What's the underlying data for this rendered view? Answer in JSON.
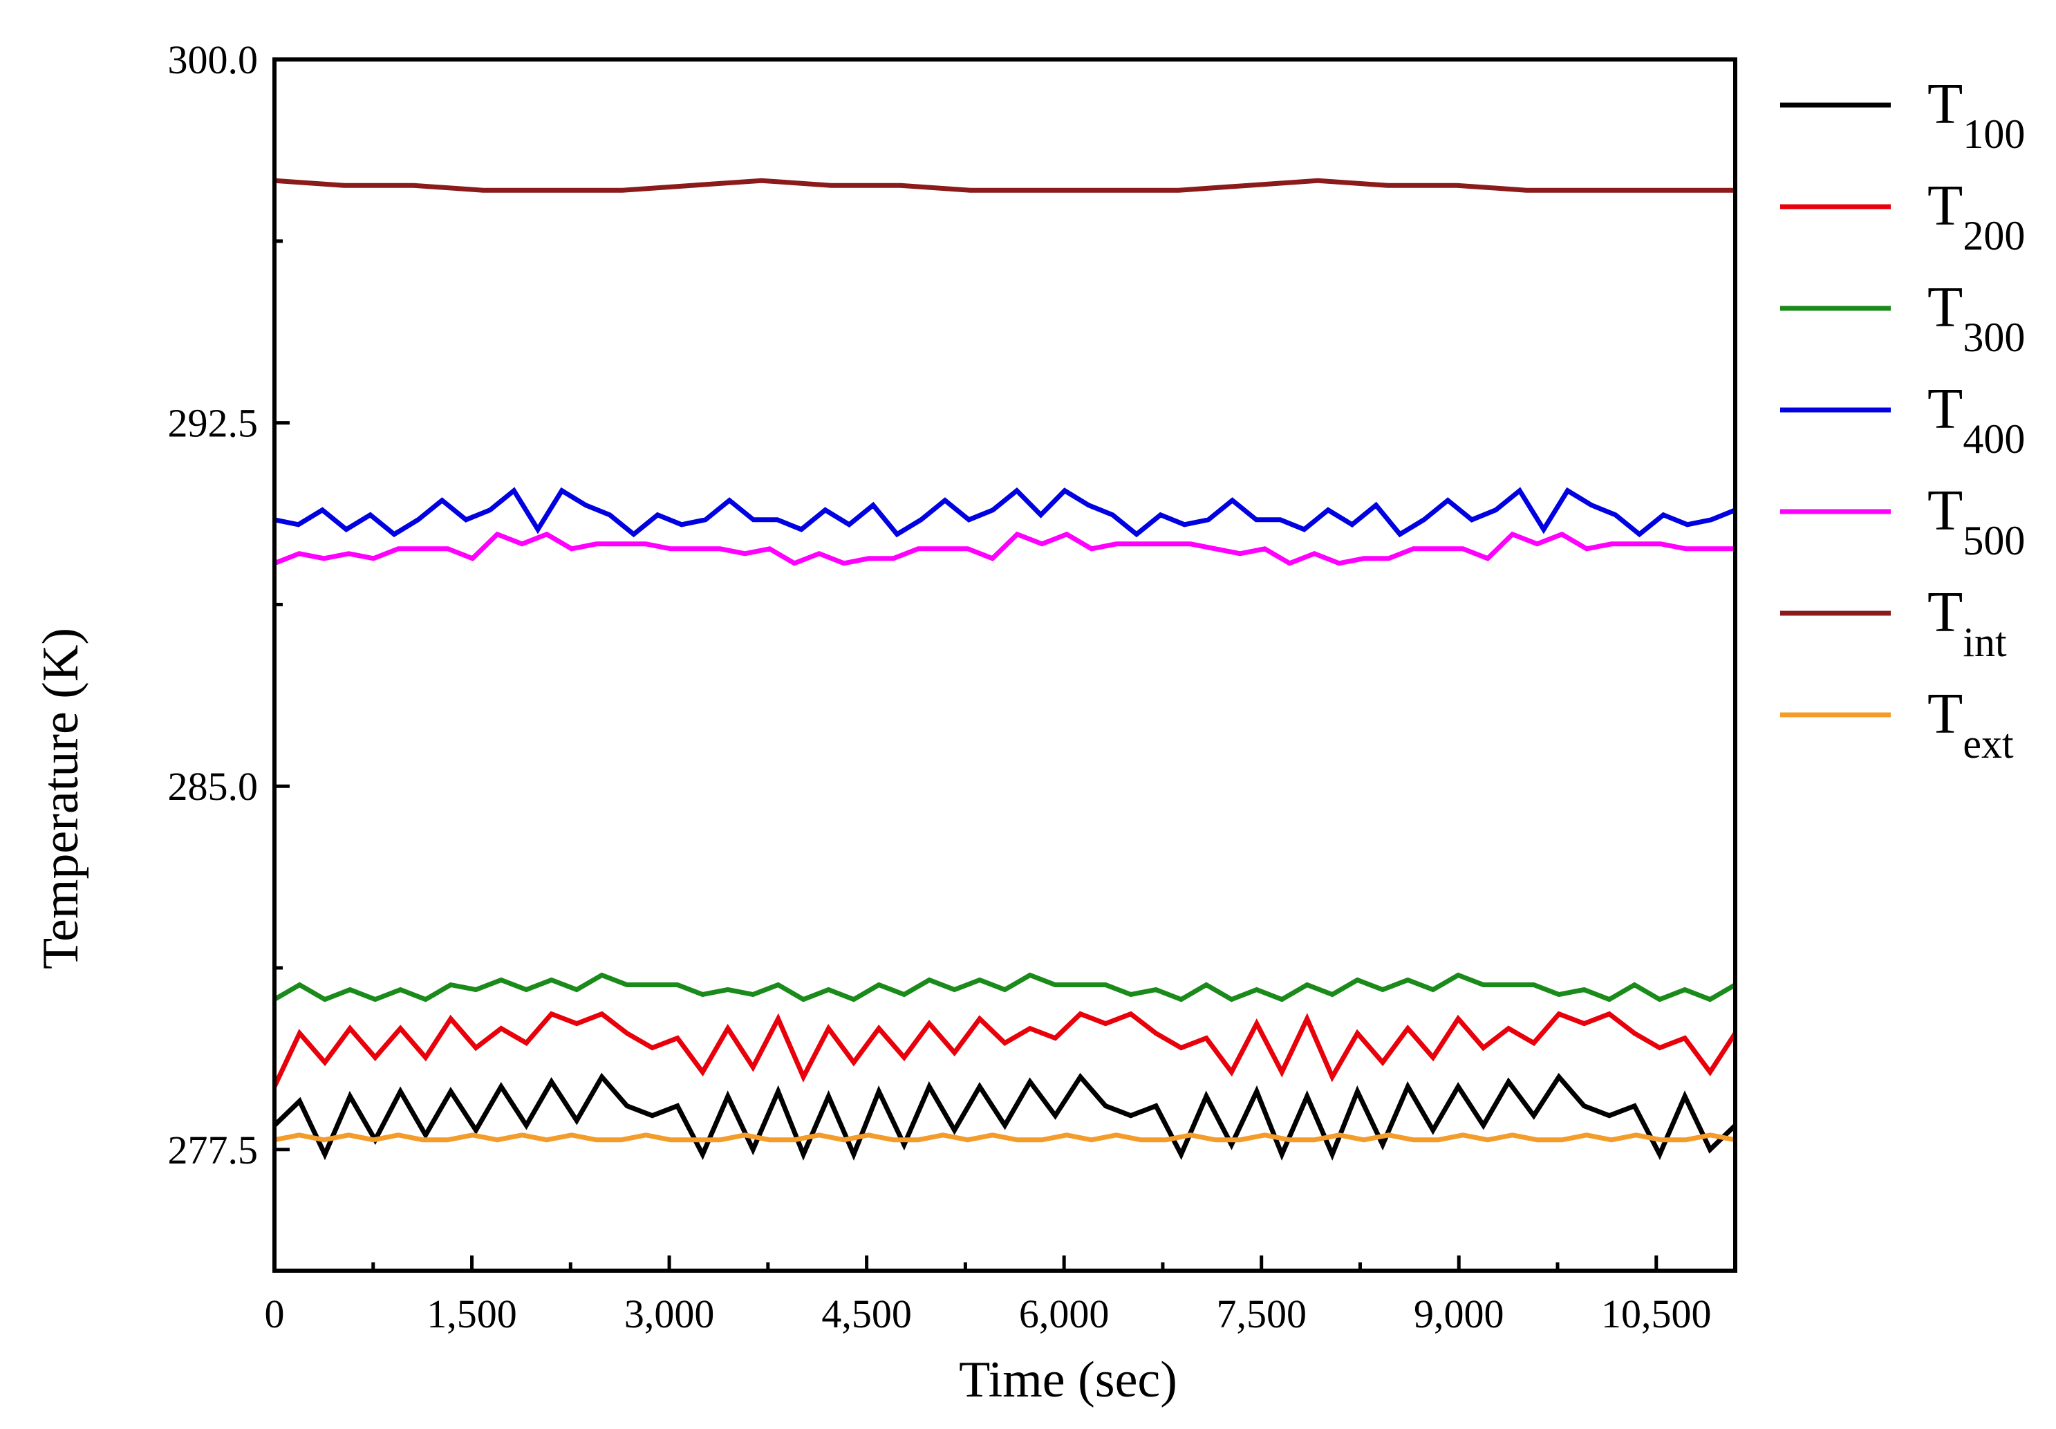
{
  "chart_data": {
    "type": "line",
    "title": "",
    "xlabel": "Time (sec)",
    "ylabel": "Temperature (K)",
    "xlim": [
      0,
      11100
    ],
    "ylim": [
      275.0,
      300.0
    ],
    "x_ticks": [
      0,
      1500,
      3000,
      4500,
      6000,
      7500,
      9000,
      10500
    ],
    "x_tick_labels": [
      "0",
      "1,500",
      "3,000",
      "4,500",
      "6,000",
      "7,500",
      "9,000",
      "10,500"
    ],
    "y_ticks": [
      277.5,
      285.0,
      292.5,
      300.0
    ],
    "y_tick_labels": [
      "277.5",
      "285.0",
      "292.5",
      "300.0"
    ],
    "legend_position": "right",
    "grid": false,
    "series": [
      {
        "name": "T",
        "sub": "100",
        "color": "#000000",
        "values": [
          278.0,
          278.5,
          277.4,
          278.6,
          277.7,
          278.7,
          277.8,
          278.7,
          277.9,
          278.8,
          278.0,
          278.9,
          278.1,
          279.0,
          278.4,
          278.2,
          278.4,
          277.4,
          278.6,
          277.5,
          278.7,
          277.4,
          278.6,
          277.4,
          278.7,
          277.6,
          278.8,
          277.9,
          278.8,
          278.0,
          278.9,
          278.2,
          279.0,
          278.4,
          278.2,
          278.4,
          277.4,
          278.6,
          277.6,
          278.7,
          277.4,
          278.6,
          277.4,
          278.7,
          277.6,
          278.8,
          277.9,
          278.8,
          278.0,
          278.9,
          278.2,
          279.0,
          278.4,
          278.2,
          278.4,
          277.4,
          278.6,
          277.5,
          278.0
        ]
      },
      {
        "name": "T",
        "sub": "200",
        "color": "#e8000b",
        "values": [
          278.8,
          279.9,
          279.3,
          280.0,
          279.4,
          280.0,
          279.4,
          280.2,
          279.6,
          280.0,
          279.7,
          280.3,
          280.1,
          280.3,
          279.9,
          279.6,
          279.8,
          279.1,
          280.0,
          279.2,
          280.2,
          279.0,
          280.0,
          279.3,
          280.0,
          279.4,
          280.1,
          279.5,
          280.2,
          279.7,
          280.0,
          279.8,
          280.3,
          280.1,
          280.3,
          279.9,
          279.6,
          279.8,
          279.1,
          280.1,
          279.1,
          280.2,
          279.0,
          279.9,
          279.3,
          280.0,
          279.4,
          280.2,
          279.6,
          280.0,
          279.7,
          280.3,
          280.1,
          280.3,
          279.9,
          279.6,
          279.8,
          279.1,
          279.9
        ]
      },
      {
        "name": "T",
        "sub": "300",
        "color": "#1a8a1a",
        "values": [
          280.6,
          280.9,
          280.6,
          280.8,
          280.6,
          280.8,
          280.6,
          280.9,
          280.8,
          281.0,
          280.8,
          281.0,
          280.8,
          281.1,
          280.9,
          280.9,
          280.9,
          280.7,
          280.8,
          280.7,
          280.9,
          280.6,
          280.8,
          280.6,
          280.9,
          280.7,
          281.0,
          280.8,
          281.0,
          280.8,
          281.1,
          280.9,
          280.9,
          280.9,
          280.7,
          280.8,
          280.6,
          280.9,
          280.6,
          280.8,
          280.6,
          280.9,
          280.7,
          281.0,
          280.8,
          281.0,
          280.8,
          281.1,
          280.9,
          280.9,
          280.9,
          280.7,
          280.8,
          280.6,
          280.9,
          280.6,
          280.8,
          280.6,
          280.9
        ]
      },
      {
        "name": "T",
        "sub": "400",
        "color": "#0000e0",
        "values": [
          290.5,
          290.4,
          290.7,
          290.3,
          290.6,
          290.2,
          290.5,
          290.9,
          290.5,
          290.7,
          291.1,
          290.3,
          291.1,
          290.8,
          290.6,
          290.2,
          290.6,
          290.4,
          290.5,
          290.9,
          290.5,
          290.5,
          290.3,
          290.7,
          290.4,
          290.8,
          290.2,
          290.5,
          290.9,
          290.5,
          290.7,
          291.1,
          290.6,
          291.1,
          290.8,
          290.6,
          290.2,
          290.6,
          290.4,
          290.5,
          290.9,
          290.5,
          290.5,
          290.3,
          290.7,
          290.4,
          290.8,
          290.2,
          290.5,
          290.9,
          290.5,
          290.7,
          291.1,
          290.3,
          291.1,
          290.8,
          290.6,
          290.2,
          290.6,
          290.4,
          290.5,
          290.7
        ]
      },
      {
        "name": "T",
        "sub": "500",
        "color": "#ff00ff",
        "values": [
          289.6,
          289.8,
          289.7,
          289.8,
          289.7,
          289.9,
          289.9,
          289.9,
          289.7,
          290.2,
          290.0,
          290.2,
          289.9,
          290.0,
          290.0,
          290.0,
          289.9,
          289.9,
          289.9,
          289.8,
          289.9,
          289.6,
          289.8,
          289.6,
          289.7,
          289.7,
          289.9,
          289.9,
          289.9,
          289.7,
          290.2,
          290.0,
          290.2,
          289.9,
          290.0,
          290.0,
          290.0,
          290.0,
          289.9,
          289.8,
          289.9,
          289.6,
          289.8,
          289.6,
          289.7,
          289.7,
          289.9,
          289.9,
          289.9,
          289.7,
          290.2,
          290.0,
          290.2,
          289.9,
          290.0,
          290.0,
          290.0,
          289.9,
          289.9,
          289.9
        ]
      },
      {
        "name": "T",
        "sub": "int",
        "color": "#8b1a1a",
        "values": [
          297.5,
          297.4,
          297.4,
          297.3,
          297.3,
          297.3,
          297.4,
          297.5,
          297.4,
          297.4,
          297.3,
          297.3,
          297.3,
          297.3,
          297.4,
          297.5,
          297.4,
          297.4,
          297.3,
          297.3,
          297.3,
          297.3
        ]
      },
      {
        "name": "T",
        "sub": "ext",
        "color": "#f39c2a",
        "values": [
          277.7,
          277.8,
          277.7,
          277.8,
          277.7,
          277.8,
          277.7,
          277.7,
          277.8,
          277.7,
          277.8,
          277.7,
          277.8,
          277.7,
          277.7,
          277.8,
          277.7,
          277.7,
          277.7,
          277.8,
          277.7,
          277.7,
          277.8,
          277.7,
          277.8,
          277.7,
          277.7,
          277.8,
          277.7,
          277.8,
          277.7,
          277.7,
          277.8,
          277.7,
          277.8,
          277.7,
          277.7,
          277.8,
          277.7,
          277.7,
          277.8,
          277.7,
          277.7,
          277.8,
          277.7,
          277.8,
          277.7,
          277.7,
          277.8,
          277.7,
          277.8,
          277.7,
          277.7,
          277.8,
          277.7,
          277.8,
          277.7,
          277.7,
          277.8,
          277.7
        ]
      }
    ]
  }
}
